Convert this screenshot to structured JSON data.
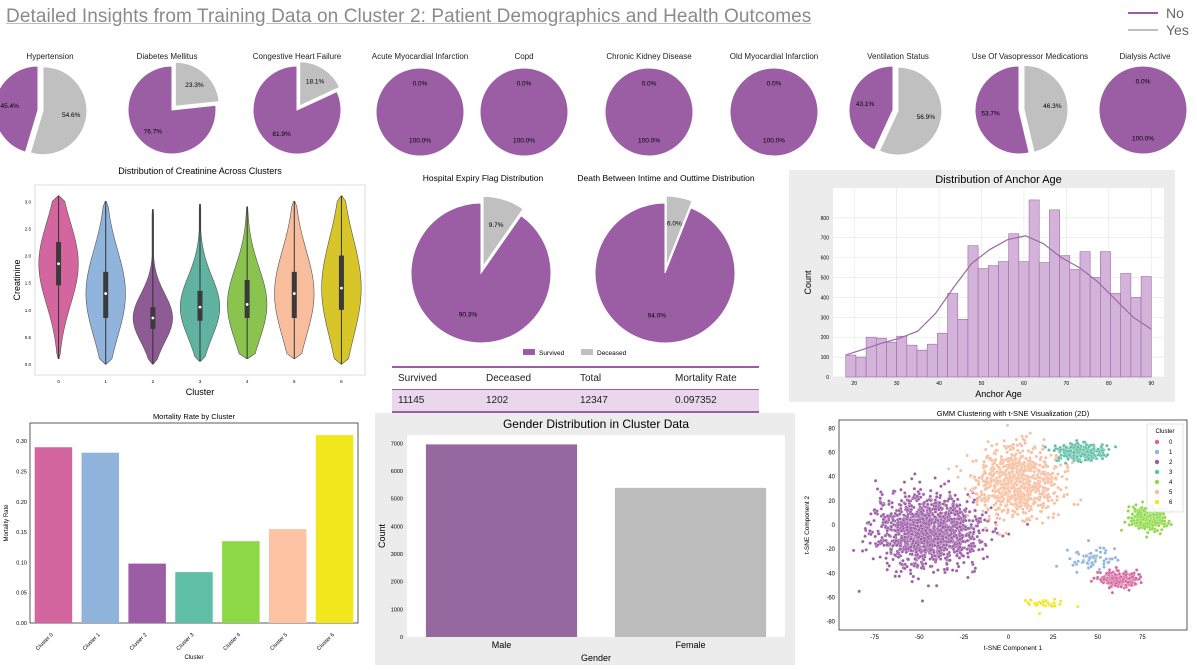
{
  "page": {
    "title": "Detailed Insights from Training Data on  Cluster 2: Patient Demographics and Health Outcomes",
    "legend": [
      {
        "label": "No",
        "color": "#9b5ea5"
      },
      {
        "label": "Yes",
        "color": "#c0c0c0"
      }
    ]
  },
  "colors": {
    "no": "#9b5ea5",
    "yes": "#c0c0c0",
    "panel_bg": "#ececec"
  },
  "chart_data": [
    {
      "type": "pie",
      "title": "Hypertension",
      "slices": [
        {
          "label": "No",
          "value": 45.4,
          "label_text": "45.4%"
        },
        {
          "label": "Yes",
          "value": 54.6,
          "label_text": "54.6%"
        }
      ]
    },
    {
      "type": "pie",
      "title": "Diabetes Mellitus",
      "slices": [
        {
          "label": "No",
          "value": 76.7,
          "label_text": "76.7%"
        },
        {
          "label": "Yes",
          "value": 23.3,
          "label_text": "23.3%"
        }
      ]
    },
    {
      "type": "pie",
      "title": "Congestive Heart Failure",
      "slices": [
        {
          "label": "No",
          "value": 81.9,
          "label_text": "81.9%"
        },
        {
          "label": "Yes",
          "value": 18.1,
          "label_text": "18.1%"
        }
      ]
    },
    {
      "type": "pie",
      "title": "Acute Myocardial Infarction",
      "slices": [
        {
          "label": "No",
          "value": 100.0,
          "label_text": "100.0%"
        },
        {
          "label": "Yes",
          "value": 0.0,
          "label_text": "0.0%"
        }
      ]
    },
    {
      "type": "pie",
      "title": "Copd",
      "slices": [
        {
          "label": "No",
          "value": 100.0,
          "label_text": "100.0%"
        },
        {
          "label": "Yes",
          "value": 0.0,
          "label_text": "0.0%"
        }
      ]
    },
    {
      "type": "pie",
      "title": "Chronic Kidney Disease",
      "slices": [
        {
          "label": "No",
          "value": 100.0,
          "label_text": "100.0%"
        },
        {
          "label": "Yes",
          "value": 0.0,
          "label_text": "0.0%"
        }
      ]
    },
    {
      "type": "pie",
      "title": "Old Myocardial Infarction",
      "slices": [
        {
          "label": "No",
          "value": 100.0,
          "label_text": "100.0%"
        },
        {
          "label": "Yes",
          "value": 0.0,
          "label_text": "0.0%"
        }
      ]
    },
    {
      "type": "pie",
      "title": "Ventilation Status",
      "slices": [
        {
          "label": "No",
          "value": 43.1,
          "label_text": "43.1%"
        },
        {
          "label": "Yes",
          "value": 56.9,
          "label_text": "56.9%"
        }
      ]
    },
    {
      "type": "pie",
      "title": "Use Of Vasopressor Medications",
      "slices": [
        {
          "label": "No",
          "value": 53.7,
          "label_text": "53.7%"
        },
        {
          "label": "Yes",
          "value": 46.3,
          "label_text": "46.3%"
        }
      ]
    },
    {
      "type": "pie",
      "title": "Dialysis Active",
      "slices": [
        {
          "label": "No",
          "value": 100.0,
          "label_text": "100.0%"
        },
        {
          "label": "Yes",
          "value": 0.0,
          "label_text": "0.0%"
        }
      ]
    },
    {
      "type": "violin",
      "title": "Distribution of Creatinine Across Clusters",
      "xlabel": "Cluster",
      "ylabel": "Creatinine",
      "categories": [
        "0",
        "1",
        "2",
        "3",
        "4",
        "5",
        "6"
      ],
      "ylim": [
        -0.2,
        3.3
      ],
      "yticks": [
        0.0,
        0.5,
        1.0,
        1.5,
        2.0,
        2.5,
        3.0
      ],
      "series": [
        {
          "name": "0",
          "min": 0.1,
          "q1": 1.45,
          "median": 1.85,
          "q3": 2.25,
          "max": 3.1,
          "color": "#d4669f"
        },
        {
          "name": "1",
          "min": 0.0,
          "q1": 0.85,
          "median": 1.3,
          "q3": 1.7,
          "max": 3.0,
          "color": "#91b4dd"
        },
        {
          "name": "2",
          "min": 0.0,
          "q1": 0.65,
          "median": 0.85,
          "q3": 1.05,
          "max": 2.85,
          "color": "#8e5b95"
        },
        {
          "name": "3",
          "min": 0.05,
          "q1": 0.8,
          "median": 1.05,
          "q3": 1.35,
          "max": 2.95,
          "color": "#5fb3a0"
        },
        {
          "name": "4",
          "min": 0.1,
          "q1": 0.85,
          "median": 1.1,
          "q3": 1.55,
          "max": 2.9,
          "color": "#8ac44e"
        },
        {
          "name": "5",
          "min": 0.1,
          "q1": 0.85,
          "median": 1.3,
          "q3": 1.7,
          "max": 3.0,
          "color": "#f7bd9d"
        },
        {
          "name": "6",
          "min": 0.0,
          "q1": 1.0,
          "median": 1.4,
          "q3": 2.0,
          "max": 3.1,
          "color": "#d8c527"
        }
      ]
    },
    {
      "type": "pie",
      "title": "Hospital Expiry Flag Distribution",
      "slices": [
        {
          "label": "Survived",
          "value": 90.3,
          "label_text": "90.3%"
        },
        {
          "label": "Deceased",
          "value": 9.7,
          "label_text": "9.7%"
        }
      ]
    },
    {
      "type": "pie",
      "title": "Death Between Intime and Outtime Distribution",
      "slices": [
        {
          "label": "Survived",
          "value": 94.0,
          "label_text": "94.0%"
        },
        {
          "label": "Deceased",
          "value": 6.0,
          "label_text": "6.0%"
        }
      ],
      "legend": [
        "Survived",
        "Deceased"
      ]
    },
    {
      "type": "table",
      "columns": [
        "Survived",
        "Deceased",
        "Total",
        "Mortality Rate"
      ],
      "rows": [
        [
          "11145",
          "1202",
          "12347",
          "0.097352"
        ]
      ]
    },
    {
      "type": "bar",
      "title": "Distribution of Anchor Age",
      "xlabel": "Anchor Age",
      "ylabel": "Count",
      "xlim": [
        15,
        93
      ],
      "ylim": [
        0,
        950
      ],
      "xticks": [
        20,
        30,
        40,
        50,
        60,
        70,
        80,
        90
      ],
      "yticks": [
        0,
        100,
        200,
        300,
        400,
        500,
        600,
        700,
        800
      ],
      "bin_start": 18,
      "bin_width": 2.4,
      "values": [
        110,
        100,
        200,
        195,
        175,
        205,
        160,
        135,
        165,
        220,
        420,
        290,
        660,
        545,
        560,
        580,
        720,
        580,
        890,
        575,
        840,
        610,
        540,
        630,
        500,
        630,
        420,
        520,
        400,
        505
      ],
      "kde": [
        110,
        140,
        170,
        195,
        230,
        320,
        450,
        570,
        640,
        690,
        710,
        670,
        600,
        550,
        480,
        390,
        300,
        240
      ]
    },
    {
      "type": "bar",
      "title": "Mortality Rate by Cluster",
      "xlabel": "Cluster",
      "ylabel": "Mortality Rate",
      "categories": [
        "Cluster 0",
        "Cluster 1",
        "Cluster 2",
        "Cluster 3",
        "Cluster 4",
        "Cluster 5",
        "Cluster 6"
      ],
      "values": [
        0.29,
        0.281,
        0.098,
        0.084,
        0.135,
        0.155,
        0.31
      ],
      "ylim": [
        0,
        0.33
      ],
      "yticks": [
        0.0,
        0.05,
        0.1,
        0.15,
        0.2,
        0.25,
        0.3
      ],
      "colors": [
        "#d4669f",
        "#91b4dd",
        "#9b5ea5",
        "#5fbfa6",
        "#8dd945",
        "#fdc3a3",
        "#f2e61c"
      ]
    },
    {
      "type": "bar",
      "title": "Gender Distribution in Cluster Data",
      "xlabel": "Gender",
      "ylabel": "Count",
      "categories": [
        "Male",
        "Female"
      ],
      "values": [
        6960,
        5390
      ],
      "ylim": [
        0,
        7300
      ],
      "yticks": [
        0,
        1000,
        2000,
        3000,
        4000,
        5000,
        6000,
        7000
      ],
      "colors": [
        "#95699f",
        "#bcbcbc"
      ]
    },
    {
      "type": "scatter",
      "title": "GMM Clustering with t-SNE Visualization (2D)",
      "xlabel": "t-SNE Component 1",
      "ylabel": "t-SNE Component 2",
      "xlim": [
        -95,
        100
      ],
      "ylim": [
        -87,
        87
      ],
      "xticks": [
        -75,
        -50,
        -25,
        0,
        25,
        50,
        75
      ],
      "yticks": [
        -80,
        -60,
        -40,
        -20,
        0,
        20,
        40,
        60,
        80
      ],
      "legend_title": "Cluster",
      "legend_position": "top-right",
      "series": [
        {
          "name": "0",
          "color": "#d4669f",
          "center": [
            62,
            -45
          ],
          "spread": [
            9,
            6
          ],
          "count": 220
        },
        {
          "name": "1",
          "color": "#91b4dd",
          "center": [
            45,
            -28
          ],
          "spread": [
            12,
            10
          ],
          "count": 60
        },
        {
          "name": "2",
          "color": "#9b5ea5",
          "center": [
            -45,
            -5
          ],
          "spread": [
            26,
            26
          ],
          "count": 1400
        },
        {
          "name": "3",
          "color": "#5fbfa6",
          "center": [
            40,
            60
          ],
          "spread": [
            12,
            7
          ],
          "count": 250
        },
        {
          "name": "4",
          "color": "#8dd945",
          "center": [
            78,
            5
          ],
          "spread": [
            9,
            9
          ],
          "count": 320
        },
        {
          "name": "5",
          "color": "#f7bd9d",
          "center": [
            5,
            35
          ],
          "spread": [
            22,
            26
          ],
          "count": 750
        },
        {
          "name": "6",
          "color": "#f2e61c",
          "center": [
            20,
            -65
          ],
          "spread": [
            10,
            5
          ],
          "count": 30
        }
      ]
    }
  ]
}
